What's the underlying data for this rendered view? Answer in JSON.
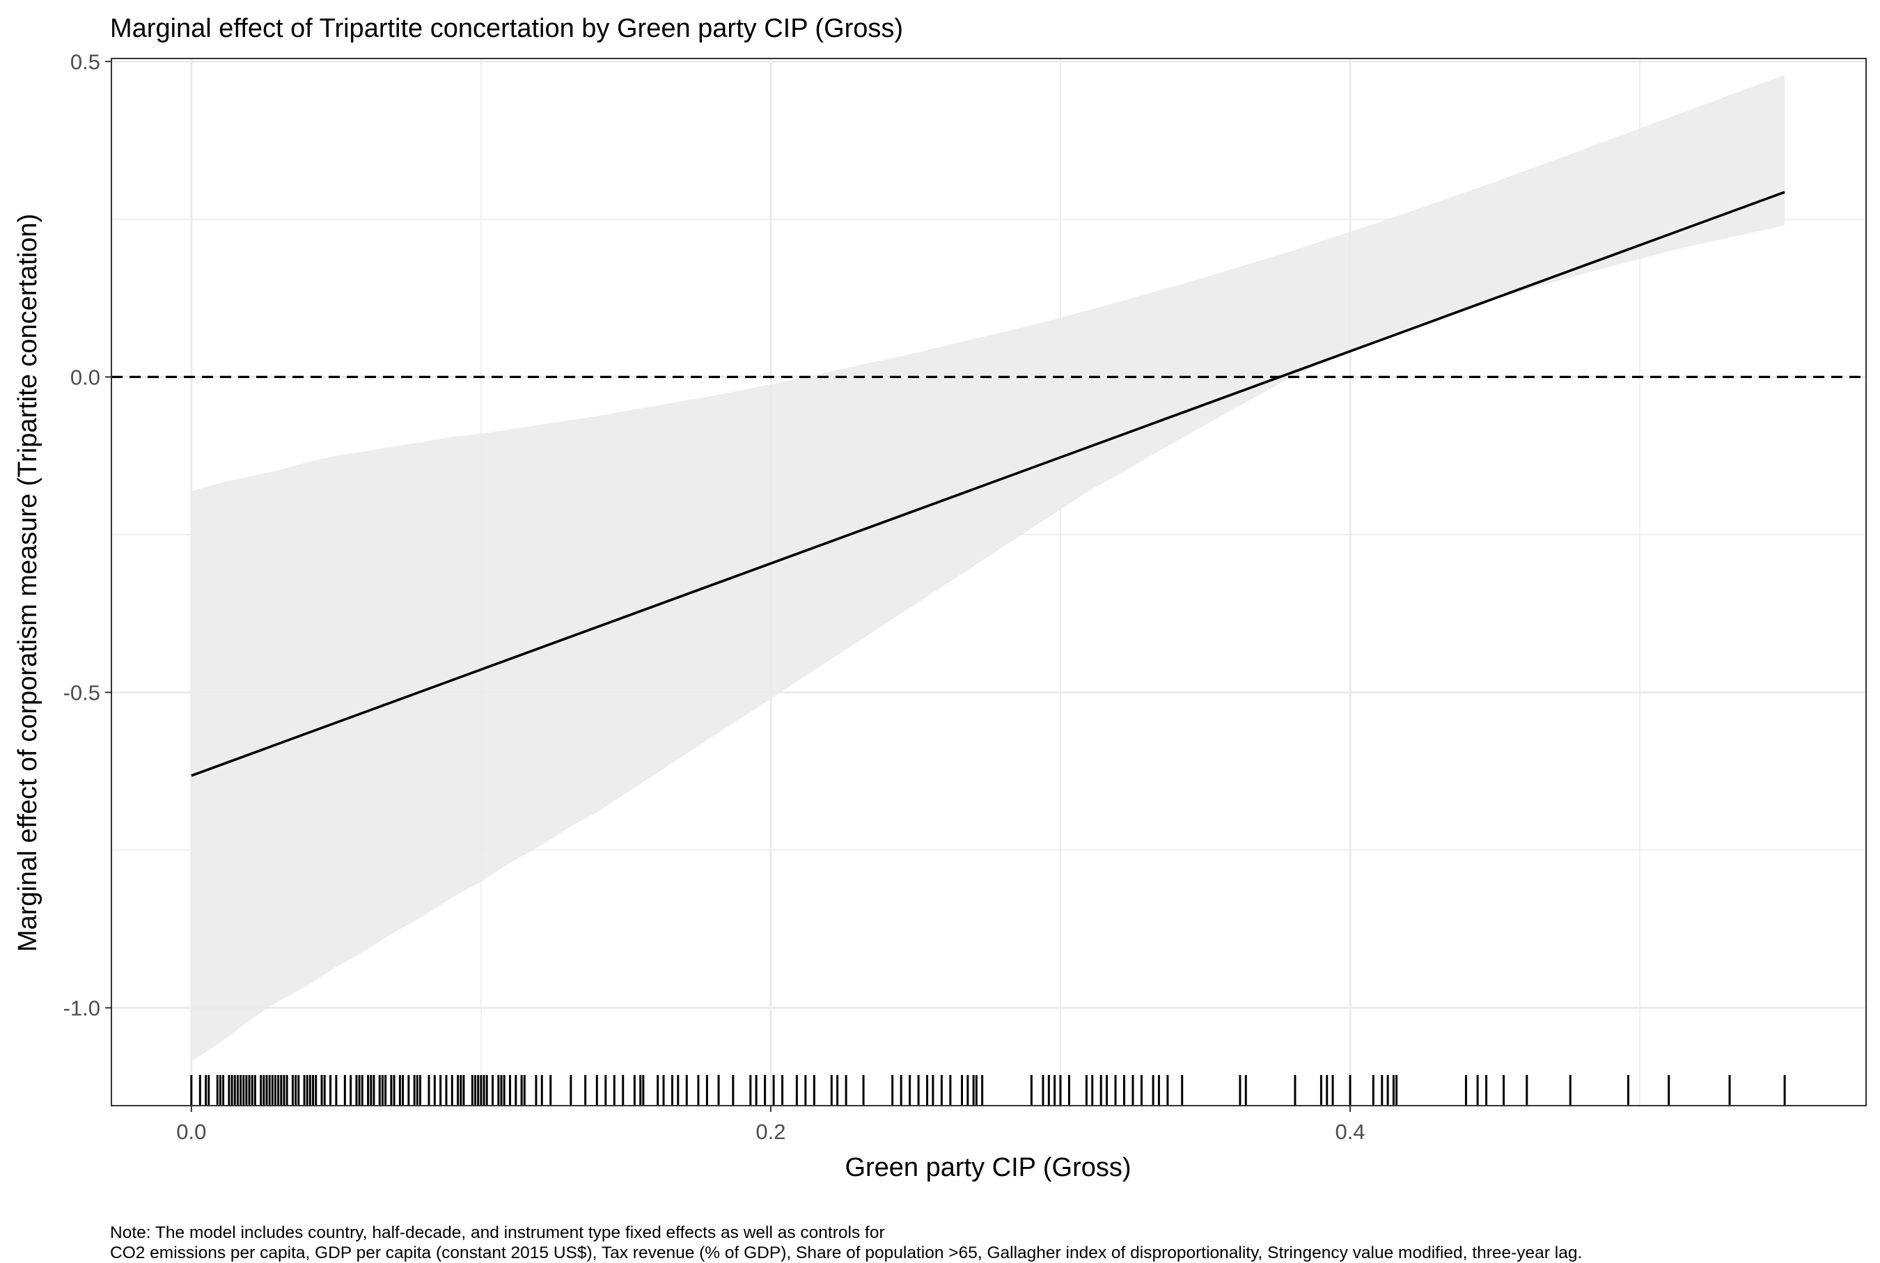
{
  "chart_data": {
    "type": "line",
    "title": "Marginal effect of Tripartite concertation by Green party CIP (Gross)",
    "xlabel": "Green party CIP (Gross)",
    "ylabel": "Marginal effect of corporatism measure (Tripartite concertation)",
    "xlim": [
      -0.0276,
      0.5781
    ],
    "ylim": [
      -1.1551,
      0.5048
    ],
    "x_ticks": [
      0.0,
      0.2,
      0.4
    ],
    "x_tick_labels": [
      "0.0",
      "0.2",
      "0.4"
    ],
    "y_ticks": [
      0.5,
      0.0,
      -0.5,
      -1.0
    ],
    "y_tick_labels": [
      "0.5",
      "0.0",
      "-0.5",
      "-1.0"
    ],
    "x_minor": [
      0.1,
      0.3,
      0.5
    ],
    "y_minor": [
      0.25,
      -0.25,
      -0.75
    ],
    "grid": true,
    "legend": "none",
    "reference_line": {
      "y": 0,
      "style": "dashed"
    },
    "line": {
      "x": [
        0.0,
        0.55
      ],
      "y": [
        -0.632,
        0.293
      ]
    },
    "ribbon": {
      "x": [
        0.0,
        0.01,
        0.02,
        0.03,
        0.04,
        0.05,
        0.06,
        0.07,
        0.08,
        0.09,
        0.1,
        0.11,
        0.12,
        0.13,
        0.14,
        0.15,
        0.16,
        0.17,
        0.18,
        0.19,
        0.2,
        0.21,
        0.22,
        0.23,
        0.24,
        0.25,
        0.26,
        0.27,
        0.28,
        0.29,
        0.3,
        0.31,
        0.32,
        0.33,
        0.34,
        0.35,
        0.36,
        0.37,
        0.38,
        0.39,
        0.4,
        0.41,
        0.42,
        0.43,
        0.44,
        0.45,
        0.46,
        0.47,
        0.48,
        0.49,
        0.5,
        0.51,
        0.52,
        0.53,
        0.54,
        0.55
      ],
      "lower": [
        -1.085,
        -1.055,
        -1.02,
        -0.99,
        -0.965,
        -0.935,
        -0.91,
        -0.88,
        -0.855,
        -0.825,
        -0.8,
        -0.77,
        -0.745,
        -0.715,
        -0.69,
        -0.66,
        -0.63,
        -0.6,
        -0.57,
        -0.54,
        -0.51,
        -0.48,
        -0.45,
        -0.42,
        -0.39,
        -0.36,
        -0.33,
        -0.3,
        -0.27,
        -0.24,
        -0.21,
        -0.18,
        -0.155,
        -0.128,
        -0.102,
        -0.076,
        -0.05,
        -0.025,
        0.0,
        0.022,
        0.042,
        0.061,
        0.078,
        0.094,
        0.109,
        0.123,
        0.137,
        0.15,
        0.163,
        0.175,
        0.187,
        0.199,
        0.21,
        0.22,
        0.23,
        0.24
      ],
      "upper": [
        -0.181,
        -0.168,
        -0.158,
        -0.148,
        -0.135,
        -0.125,
        -0.118,
        -0.11,
        -0.103,
        -0.095,
        -0.09,
        -0.083,
        -0.076,
        -0.069,
        -0.062,
        -0.054,
        -0.046,
        -0.038,
        -0.03,
        -0.021,
        -0.012,
        -0.002,
        0.008,
        0.018,
        0.028,
        0.038,
        0.049,
        0.06,
        0.071,
        0.082,
        0.094,
        0.106,
        0.119,
        0.132,
        0.145,
        0.158,
        0.172,
        0.186,
        0.2,
        0.215,
        0.23,
        0.245,
        0.261,
        0.277,
        0.293,
        0.309,
        0.326,
        0.343,
        0.36,
        0.377,
        0.394,
        0.411,
        0.428,
        0.445,
        0.462,
        0.479
      ]
    },
    "rug": [
      0.0,
      0.003,
      0.005,
      0.006,
      0.009,
      0.01,
      0.011,
      0.013,
      0.014,
      0.015,
      0.016,
      0.017,
      0.018,
      0.019,
      0.02,
      0.021,
      0.022,
      0.024,
      0.025,
      0.026,
      0.027,
      0.028,
      0.029,
      0.03,
      0.031,
      0.032,
      0.033,
      0.035,
      0.036,
      0.037,
      0.039,
      0.04,
      0.041,
      0.042,
      0.043,
      0.045,
      0.046,
      0.048,
      0.05,
      0.053,
      0.055,
      0.057,
      0.058,
      0.059,
      0.061,
      0.062,
      0.063,
      0.065,
      0.066,
      0.067,
      0.069,
      0.07,
      0.072,
      0.073,
      0.075,
      0.077,
      0.078,
      0.079,
      0.082,
      0.084,
      0.086,
      0.088,
      0.09,
      0.092,
      0.093,
      0.094,
      0.097,
      0.098,
      0.099,
      0.1,
      0.101,
      0.102,
      0.104,
      0.106,
      0.107,
      0.108,
      0.11,
      0.112,
      0.114,
      0.115,
      0.119,
      0.121,
      0.124,
      0.131,
      0.136,
      0.14,
      0.143,
      0.146,
      0.149,
      0.153,
      0.155,
      0.156,
      0.161,
      0.163,
      0.166,
      0.168,
      0.171,
      0.175,
      0.178,
      0.182,
      0.187,
      0.193,
      0.195,
      0.198,
      0.201,
      0.204,
      0.209,
      0.212,
      0.215,
      0.221,
      0.223,
      0.226,
      0.232,
      0.242,
      0.245,
      0.248,
      0.251,
      0.254,
      0.256,
      0.259,
      0.262,
      0.266,
      0.268,
      0.27,
      0.271,
      0.273,
      0.29,
      0.294,
      0.296,
      0.298,
      0.3,
      0.303,
      0.309,
      0.311,
      0.314,
      0.316,
      0.319,
      0.322,
      0.325,
      0.328,
      0.332,
      0.334,
      0.337,
      0.342,
      0.362,
      0.364,
      0.381,
      0.39,
      0.392,
      0.394,
      0.4,
      0.408,
      0.411,
      0.413,
      0.415,
      0.416,
      0.44,
      0.444,
      0.447,
      0.453,
      0.461,
      0.476,
      0.496,
      0.51,
      0.531,
      0.55
    ]
  },
  "note": {
    "line1": "Note: The model includes country, half-decade, and instrument type fixed effects as well as controls for",
    "line2": "CO2 emissions per capita, GDP per capita (constant 2015 US$), Tax revenue (% of GDP), Share of population >65, Gallagher index of disproportionality, Stringency value modified, three-year lag."
  }
}
